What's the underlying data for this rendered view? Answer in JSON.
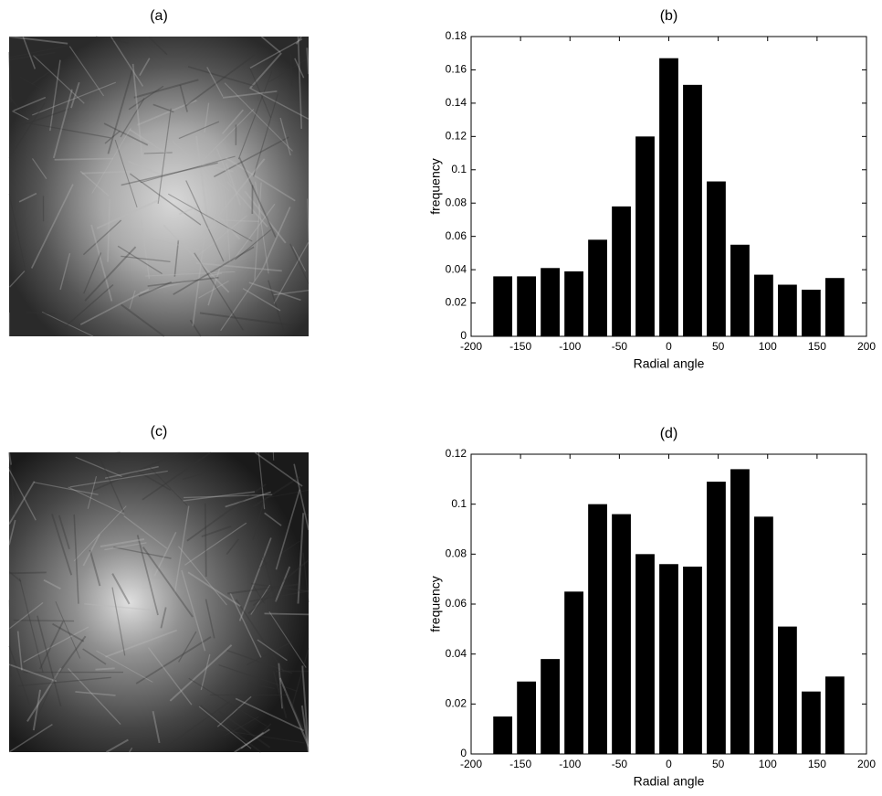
{
  "images": [
    {
      "title": "(a)"
    },
    {
      "title": "(c)"
    }
  ],
  "chart_data": [
    {
      "type": "histogram",
      "title": "(b)",
      "x_label": "Radial angle",
      "y_label": "frequency",
      "bins": [
        -180,
        -156,
        -132,
        -108,
        -84,
        -60,
        -36,
        -12,
        12,
        36,
        60,
        84,
        108,
        132,
        156,
        180
      ],
      "values": [
        0.036,
        0.036,
        0.041,
        0.039,
        0.058,
        0.078,
        0.12,
        0.167,
        0.151,
        0.093,
        0.055,
        0.037,
        0.031,
        0.028,
        0.035
      ],
      "color": "#000000",
      "xlim": [
        -200,
        200
      ],
      "xticks": [
        -200,
        -150,
        -100,
        -50,
        0,
        50,
        100,
        150,
        200
      ],
      "ylim": [
        0,
        0.18
      ],
      "yticks": [
        0,
        0.02,
        0.04,
        0.06,
        0.08,
        0.1,
        0.12,
        0.14,
        0.16,
        0.18
      ]
    },
    {
      "type": "histogram",
      "title": "(d)",
      "x_label": "Radial angle",
      "y_label": "frequency",
      "bins": [
        -180,
        -156,
        -132,
        -108,
        -84,
        -60,
        -36,
        -12,
        12,
        36,
        60,
        84,
        108,
        132,
        156,
        180
      ],
      "values": [
        0.015,
        0.029,
        0.038,
        0.065,
        0.1,
        0.096,
        0.08,
        0.076,
        0.075,
        0.109,
        0.114,
        0.095,
        0.051,
        0.025,
        0.031
      ],
      "color": "#000000",
      "xlim": [
        -200,
        200
      ],
      "xticks": [
        -200,
        -150,
        -100,
        -50,
        0,
        50,
        100,
        150,
        200
      ],
      "ylim": [
        0,
        0.12
      ],
      "yticks": [
        0,
        0.02,
        0.04,
        0.06,
        0.08,
        0.1,
        0.12
      ]
    }
  ]
}
